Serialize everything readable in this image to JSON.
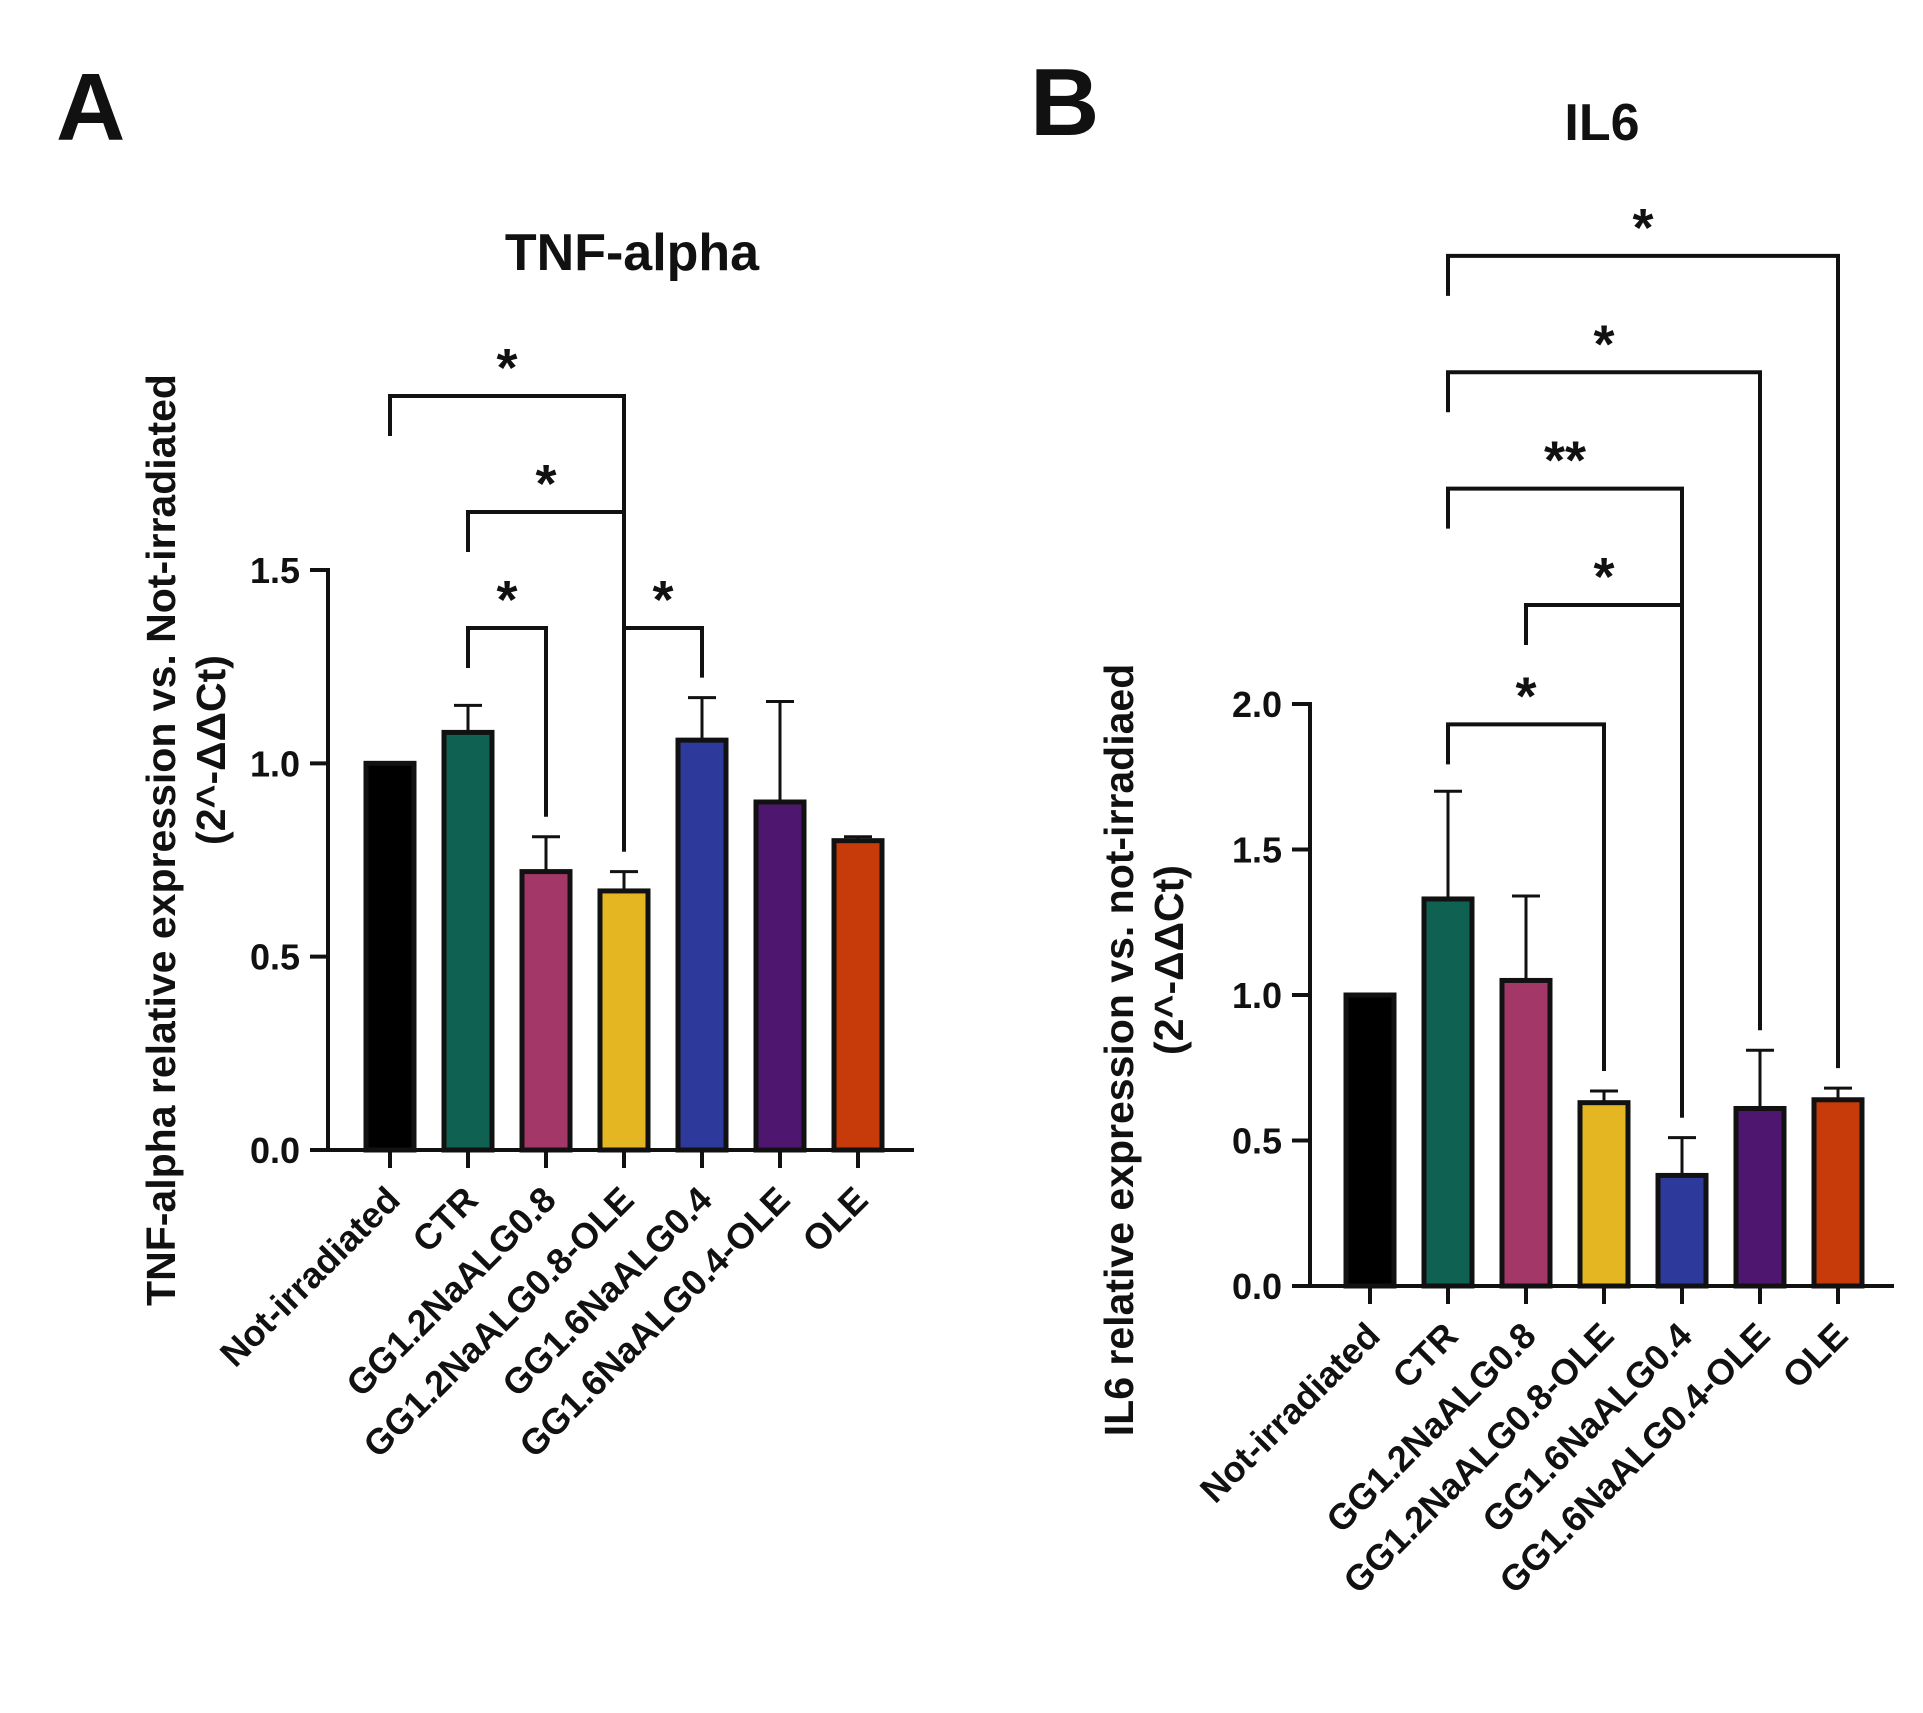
{
  "figure": {
    "panel_letters": [
      "A",
      "B"
    ]
  },
  "chart_data": [
    {
      "type": "bar",
      "panel": "A",
      "title": "TNF-alpha",
      "ylabel": "TNF-alpha relative expression vs. Not-irradiated",
      "ylabel2": "(2^-ΔΔCt)",
      "xlabel": "",
      "ylim": [
        0,
        1.5
      ],
      "yticks": [
        0.0,
        0.5,
        1.0,
        1.5
      ],
      "ytick_labels": [
        "0.0",
        "0.5",
        "1.0",
        "1.5"
      ],
      "categories": [
        "Not-irradiated",
        "CTR",
        "GG1.2NaALG0.8",
        "GG1.2NaALG0.8-OLE",
        "GG1.6NaALG0.4",
        "GG1.6NaALG0.4-OLE",
        "OLE"
      ],
      "values": [
        1.0,
        1.08,
        0.72,
        0.67,
        1.06,
        0.9,
        0.8
      ],
      "errors": [
        0.0,
        0.07,
        0.09,
        0.05,
        0.11,
        0.26,
        0.01
      ],
      "colors": [
        "#000000",
        "#0f6152",
        "#a33868",
        "#e3b622",
        "#2d3a9b",
        "#4f1670",
        "#c73a0a"
      ],
      "significance": [
        {
          "from": 0,
          "to": 3,
          "label": "*",
          "level": 1.95
        },
        {
          "from": 1,
          "to": 3,
          "label": "*",
          "level": 1.65
        },
        {
          "from": 1,
          "to": 2,
          "label": "*",
          "level": 1.35
        },
        {
          "from": 3,
          "to": 4,
          "label": "*",
          "level": 1.35
        }
      ],
      "grid": false,
      "legend": "none"
    },
    {
      "type": "bar",
      "panel": "B",
      "title": "IL6",
      "ylabel": "IL6 relative expression vs. not-irradiaed",
      "ylabel2": "(2^-ΔΔCt)",
      "xlabel": "",
      "ylim": [
        0,
        2.0
      ],
      "yticks": [
        0.0,
        0.5,
        1.0,
        1.5,
        2.0
      ],
      "ytick_labels": [
        "0.0",
        "0.5",
        "1.0",
        "1.5",
        "2.0"
      ],
      "categories": [
        "Not-irradiated",
        "CTR",
        "GG1.2NaALG0.8",
        "GG1.2NaALG0.8-OLE",
        "GG1.6NaALG0.4",
        "GG1.6NaALG0.4-OLE",
        "OLE"
      ],
      "values": [
        1.0,
        1.33,
        1.05,
        0.63,
        0.38,
        0.61,
        0.64
      ],
      "errors": [
        0.0,
        0.37,
        0.29,
        0.04,
        0.13,
        0.2,
        0.04
      ],
      "colors": [
        "#000000",
        "#0f6152",
        "#a33868",
        "#e3b622",
        "#2d3a9b",
        "#4f1670",
        "#c73a0a"
      ],
      "significance": [
        {
          "from": 1,
          "to": 3,
          "label": "*",
          "level": 1.93
        },
        {
          "from": 2,
          "to": 4,
          "label": "*",
          "level": 2.34
        },
        {
          "from": 1,
          "to": 4,
          "label": "**",
          "level": 2.74
        },
        {
          "from": 1,
          "to": 5,
          "label": "*",
          "level": 3.14
        },
        {
          "from": 1,
          "to": 6,
          "label": "*",
          "level": 3.54
        }
      ],
      "grid": false,
      "legend": "none"
    }
  ]
}
